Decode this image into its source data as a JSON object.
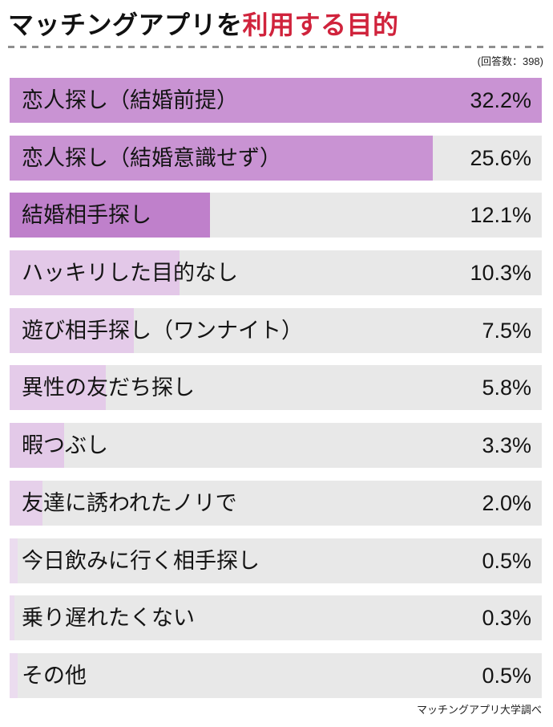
{
  "title": {
    "black_part": "マッチングアプリを",
    "red_part": "利用する目的"
  },
  "respondents_note": "(回答数：398)",
  "footer_credit": "マッチングアプリ大学調べ",
  "colors": {
    "accent_red": "#d0233c",
    "track_gray": "#e8e8e8",
    "bar_purple_strong": "#c993d3",
    "bar_purple_light": "#e3c9e8",
    "dash_gray": "#8f8f8f"
  },
  "chart_data": {
    "type": "bar",
    "orientation": "horizontal",
    "title": "マッチングアプリを利用する目的",
    "subtitle": "(回答数：398)",
    "source": "マッチングアプリ大学調べ",
    "unit": "%",
    "max_scale_value": 32.2,
    "grid": false,
    "legend": false,
    "categories": [
      "恋人探し（結婚前提）",
      "恋人探し（結婚意識せず）",
      "結婚相手探し",
      "ハッキリした目的なし",
      "遊び相手探し（ワンナイト）",
      "異性の友だち探し",
      "暇つぶし",
      "友達に誘われたノリで",
      "今日飲みに行く相手探し",
      "乗り遅れたくない",
      "その他"
    ],
    "values": [
      32.2,
      25.6,
      12.1,
      10.3,
      7.5,
      5.8,
      3.3,
      2.0,
      0.5,
      0.3,
      0.5
    ],
    "rows": [
      {
        "label": "恋人探し（結婚前提）",
        "value": 32.2,
        "value_label": "32.2%",
        "color": "#c993d3"
      },
      {
        "label": "恋人探し（結婚意識せず）",
        "value": 25.6,
        "value_label": "25.6%",
        "color": "#c993d3"
      },
      {
        "label": "結婚相手探し",
        "value": 12.1,
        "value_label": "12.1%",
        "color": "#bf80cb"
      },
      {
        "label": "ハッキリした目的なし",
        "value": 10.3,
        "value_label": "10.3%",
        "color": "#e3c8e8"
      },
      {
        "label": "遊び相手探し（ワンナイト）",
        "value": 7.5,
        "value_label": "7.5%",
        "color": "#e4cbe9"
      },
      {
        "label": "異性の友だち探し",
        "value": 5.8,
        "value_label": "5.8%",
        "color": "#e4cbe9"
      },
      {
        "label": "暇つぶし",
        "value": 3.3,
        "value_label": "3.3%",
        "color": "#e3c9e8"
      },
      {
        "label": "友達に誘われたノリで",
        "value": 2.0,
        "value_label": "2.0%",
        "color": "#e6d0ea"
      },
      {
        "label": "今日飲みに行く相手探し",
        "value": 0.5,
        "value_label": "0.5%",
        "color": "#ebdcef"
      },
      {
        "label": "乗り遅れたくない",
        "value": 0.3,
        "value_label": "0.3%",
        "color": "#ebdcef"
      },
      {
        "label": "その他",
        "value": 0.5,
        "value_label": "0.5%",
        "color": "#ebdcef"
      }
    ]
  }
}
